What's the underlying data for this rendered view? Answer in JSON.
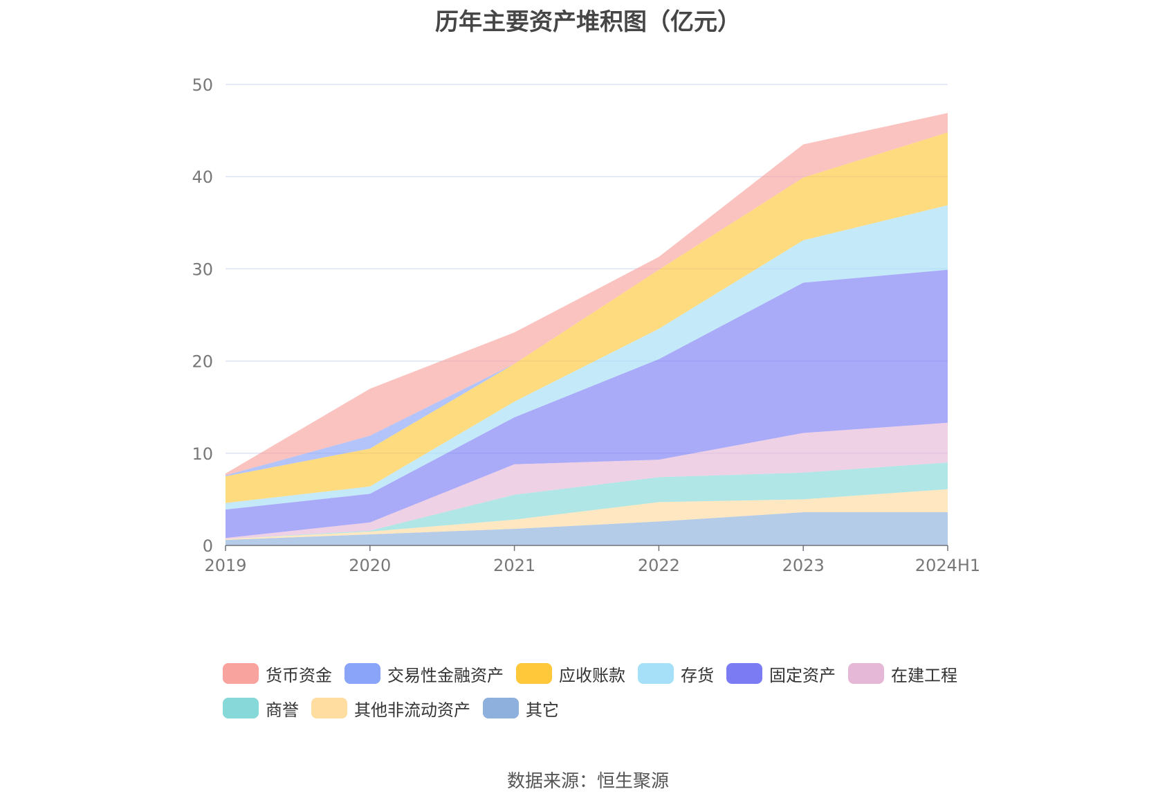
{
  "title": "历年主要资产堆积图（亿元）",
  "source": "数据来源：恒生聚源",
  "chart_data": {
    "type": "area",
    "stacked": true,
    "categories": [
      "2019",
      "2020",
      "2021",
      "2022",
      "2023",
      "2024H1"
    ],
    "ylim": [
      0,
      50
    ],
    "yticks": [
      0,
      10,
      20,
      30,
      40,
      50
    ],
    "grid": true,
    "legend_position": "bottom",
    "series": [
      {
        "name": "其它",
        "color": "#8eb0dc",
        "values": [
          0.6,
          1.2,
          1.8,
          2.6,
          3.6,
          3.6
        ]
      },
      {
        "name": "其他非流动资产",
        "color": "#ffdca0",
        "values": [
          0.1,
          0.3,
          1.0,
          2.1,
          1.4,
          2.5
        ]
      },
      {
        "name": "商誉",
        "color": "#87d8d8",
        "values": [
          0.0,
          0.1,
          2.7,
          2.7,
          2.9,
          2.9
        ]
      },
      {
        "name": "在建工程",
        "color": "#e6b8d8",
        "values": [
          0.1,
          0.9,
          3.3,
          1.9,
          4.3,
          4.3
        ]
      },
      {
        "name": "固定资产",
        "color": "#7b7cf4",
        "values": [
          3.1,
          3.1,
          5.1,
          10.9,
          16.3,
          16.6
        ]
      },
      {
        "name": "存货",
        "color": "#a5dff8",
        "values": [
          0.7,
          0.8,
          1.7,
          3.3,
          4.6,
          7.0
        ]
      },
      {
        "name": "应收账款",
        "color": "#ffc73a",
        "values": [
          2.9,
          4.1,
          4.1,
          6.4,
          6.8,
          7.9
        ]
      },
      {
        "name": "交易性金融资产",
        "color": "#89a4f8",
        "values": [
          0.1,
          1.4,
          0.0,
          0.0,
          0.0,
          0.0
        ]
      },
      {
        "name": "货币资金",
        "color": "#f8a39d",
        "values": [
          0.2,
          5.1,
          3.4,
          1.4,
          3.6,
          2.1
        ]
      }
    ]
  },
  "legend": {
    "rows": [
      [
        {
          "label": "货币资金",
          "color": "#f8a39d"
        },
        {
          "label": "交易性金融资产",
          "color": "#89a4f8"
        },
        {
          "label": "应收账款",
          "color": "#ffc73a"
        },
        {
          "label": "存货",
          "color": "#a5dff8"
        },
        {
          "label": "固定资产",
          "color": "#7b7cf4"
        },
        {
          "label": "在建工程",
          "color": "#e6b8d8"
        }
      ],
      [
        {
          "label": "商誉",
          "color": "#87d8d8"
        },
        {
          "label": "其他非流动资产",
          "color": "#ffdca0"
        },
        {
          "label": "其它",
          "color": "#8eb0dc"
        }
      ]
    ]
  }
}
